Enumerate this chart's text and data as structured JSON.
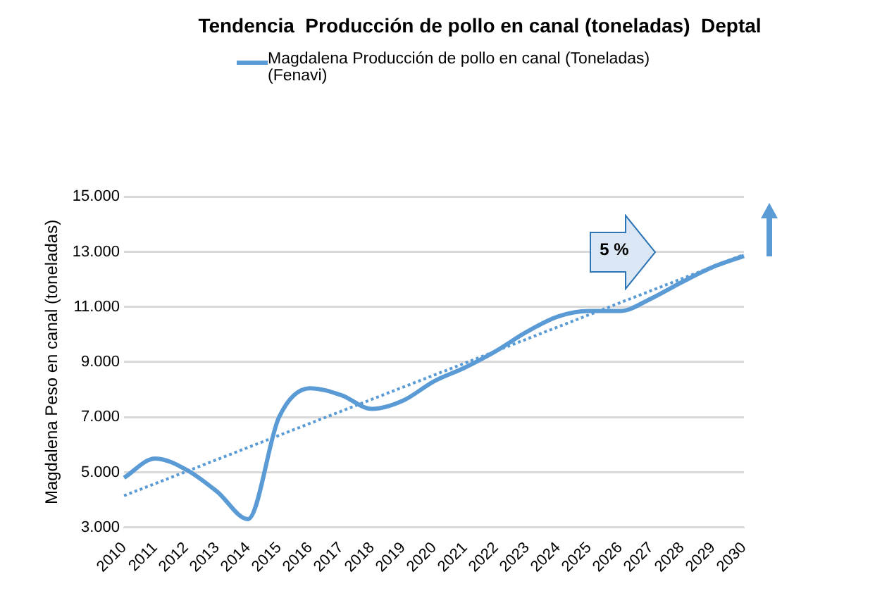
{
  "chart_data": {
    "type": "line",
    "title": "Tendencia  Producción de pollo en canal (toneladas)  Deptal",
    "ylabel": "Magdalena Peso en canal (toneladas)",
    "categories": [
      "2010",
      "2011",
      "2012",
      "2013",
      "2014",
      "2015",
      "2016",
      "2017",
      "2018",
      "2019",
      "2020",
      "2021",
      "2022",
      "2023",
      "2024",
      "2025",
      "2026",
      "2027",
      "2028",
      "2029",
      "2030"
    ],
    "series": [
      {
        "name": "Magdalena Producción de pollo en canal (Toneladas) (Fenavi)",
        "color": "#5b9bd5",
        "values": [
          4800,
          5500,
          5100,
          4300,
          3300,
          7000,
          8050,
          7800,
          7300,
          7600,
          8300,
          8800,
          9400,
          10100,
          10650,
          10850,
          10850,
          11300,
          11900,
          12450,
          12850
        ]
      },
      {
        "type": "line",
        "color": "#5b9bd5",
        "line_style": "dotted",
        "values": [
          4150,
          null,
          null,
          null,
          null,
          null,
          null,
          null,
          null,
          null,
          null,
          null,
          null,
          null,
          null,
          null,
          null,
          null,
          null,
          null,
          12900
        ]
      }
    ],
    "ylim": [
      3000,
      15000
    ],
    "yticks": [
      {
        "value": 3000,
        "label": "3.000"
      },
      {
        "value": 5000,
        "label": "5.000"
      },
      {
        "value": 7000,
        "label": "7.000"
      },
      {
        "value": 9000,
        "label": "9.000"
      },
      {
        "value": 11000,
        "label": "11.000"
      },
      {
        "value": 13000,
        "label": "13.000"
      },
      {
        "value": 15000,
        "label": "15.000"
      }
    ],
    "grid": "y",
    "legend": "top",
    "marker": "none",
    "annotations": [
      "5 %"
    ]
  }
}
